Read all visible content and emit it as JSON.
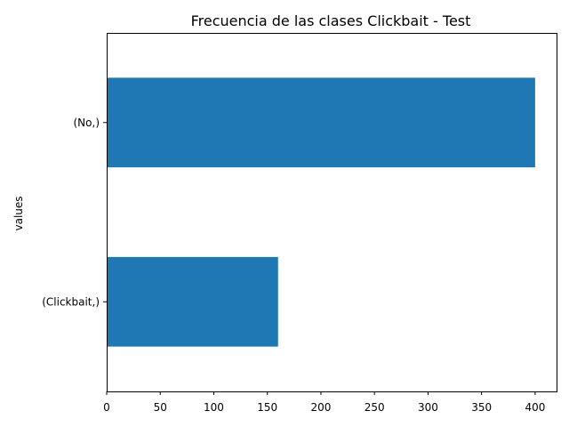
{
  "chart_data": {
    "type": "bar",
    "orientation": "horizontal",
    "title": "Frecuencia de las clases Clickbait - Test",
    "xlabel": "",
    "ylabel": "values",
    "categories": [
      "(No,)",
      "(Clickbait,)"
    ],
    "values": [
      400,
      160
    ],
    "xlim": [
      0,
      420
    ],
    "xticks": [
      0,
      50,
      100,
      150,
      200,
      250,
      300,
      350,
      400
    ],
    "bar_color": "#1f77b4",
    "grid": false,
    "legend": "none"
  }
}
